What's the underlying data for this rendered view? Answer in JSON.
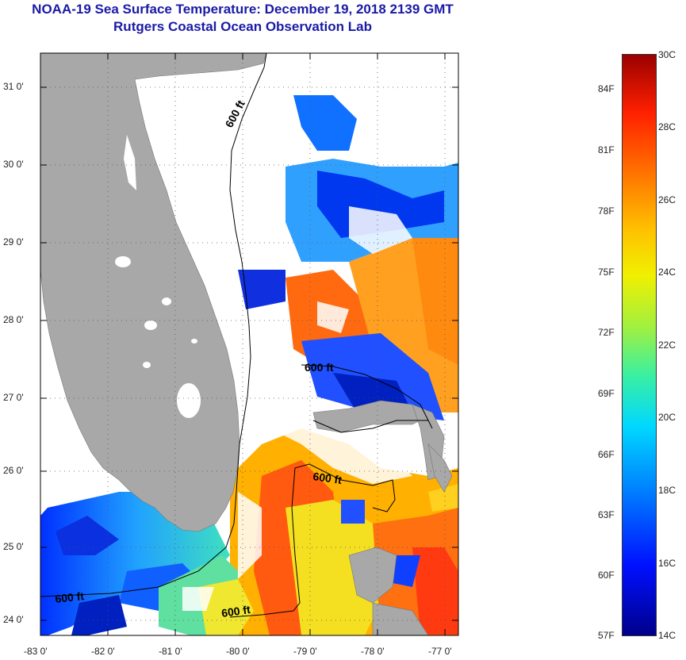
{
  "title": {
    "line1": "NOAA-19 Sea Surface Temperature:  December 19, 2018 2139 GMT",
    "line2": "Rutgers Coastal Ocean Observation Lab"
  },
  "colors": {
    "title": "#1a1aa6",
    "land": "#a8a8a8",
    "cloud": "#ffffff",
    "contour": "#000000"
  },
  "map": {
    "lon_range": [
      -83,
      -76.8
    ],
    "lat_range": [
      23.85,
      31.4
    ],
    "x_ticks": [
      "-83 0'",
      "-82 0'",
      "-81 0'",
      "-80 0'",
      "-79 0'",
      "-78 0'",
      "-77 0'"
    ],
    "y_ticks": [
      "31 0'",
      "30 0'",
      "29 0'",
      "28 0'",
      "27 0'",
      "26 0'",
      "25 0'",
      "24 0'"
    ],
    "contour_labels": [
      "600 ft",
      "600 ft",
      "600 ft",
      "600 ft",
      "600 ft"
    ],
    "grid": true
  },
  "colorbar": {
    "left_labels": [
      "84F",
      "81F",
      "78F",
      "75F",
      "72F",
      "69F",
      "66F",
      "63F",
      "60F",
      "57F"
    ],
    "right_labels": [
      "30C",
      "28C",
      "26C",
      "24C",
      "22C",
      "20C",
      "18C",
      "16C",
      "14C"
    ]
  }
}
